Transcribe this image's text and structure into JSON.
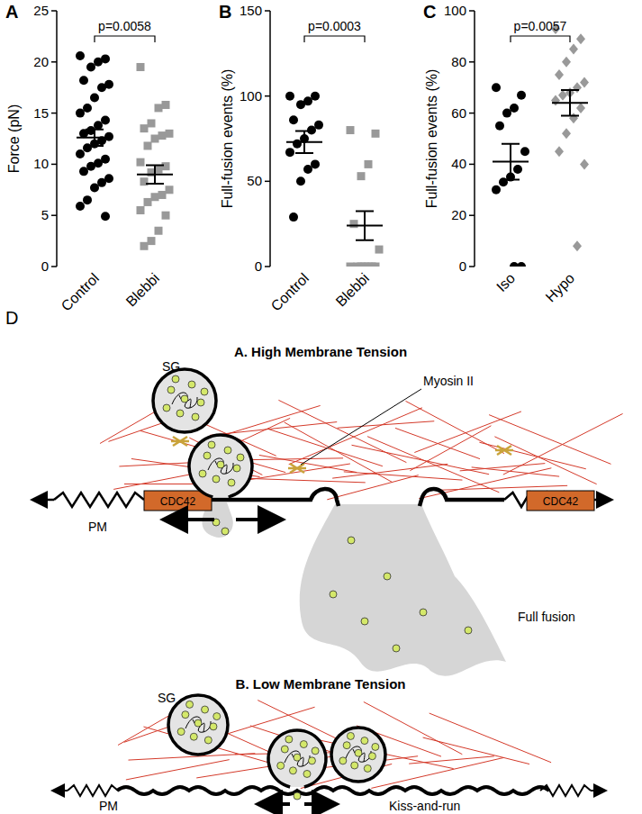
{
  "chart_data": [
    {
      "type": "scatter",
      "panel": "A",
      "y_label": "Force (pN)",
      "categories": [
        "Control",
        "Blebbi"
      ],
      "ylim": [
        0,
        25
      ],
      "yticks": [
        0,
        5,
        10,
        15,
        20,
        25
      ],
      "annotation": "p=0.0058",
      "groups": [
        {
          "color": "#000000",
          "marker": "circle",
          "mean": 12.6,
          "error": 0.8,
          "values": [
            20.6,
            20.3,
            20.0,
            19.5,
            18.2,
            17.8,
            17.5,
            16.5,
            15.5,
            15.0,
            14.3,
            13.8,
            13.3,
            13.0,
            12.7,
            12.3,
            12.0,
            11.6,
            11.0,
            10.5,
            10.1,
            9.8,
            9.3,
            8.6,
            8.2,
            7.7,
            6.5,
            5.9,
            4.9
          ]
        },
        {
          "color": "#999999",
          "marker": "square",
          "mean": 9.0,
          "error": 0.9,
          "values": [
            19.5,
            15.8,
            15.5,
            14.0,
            13.5,
            13.0,
            12.8,
            12.5,
            11.8,
            10.2,
            9.8,
            9.5,
            9.2,
            8.3,
            7.5,
            7.0,
            6.8,
            6.3,
            5.5,
            5.0,
            3.5,
            2.5,
            2.0
          ]
        }
      ]
    },
    {
      "type": "scatter",
      "panel": "B",
      "y_label": "Full-fusion events (%)",
      "categories": [
        "Control",
        "Blebbi"
      ],
      "ylim": [
        0,
        150
      ],
      "yticks": [
        0,
        50,
        100,
        150
      ],
      "annotation": "p=0.0003",
      "groups": [
        {
          "color": "#000000",
          "marker": "circle",
          "mean": 73,
          "error": 6.5,
          "values": [
            100,
            100,
            97,
            95,
            86,
            83,
            80,
            75,
            72,
            67,
            60,
            57,
            50,
            29
          ]
        },
        {
          "color": "#999999",
          "marker": "square",
          "mean": 24,
          "error": 8.5,
          "values": [
            80,
            78,
            60,
            53,
            25,
            10,
            0,
            0,
            0,
            0,
            0,
            0,
            0
          ]
        }
      ]
    },
    {
      "type": "scatter",
      "panel": "C",
      "y_label": "Full-fusion events (%)",
      "categories": [
        "Iso",
        "Hypo"
      ],
      "ylim": [
        0,
        100
      ],
      "yticks": [
        0,
        20,
        40,
        60,
        80,
        100
      ],
      "annotation": "p=0.0057",
      "groups": [
        {
          "color": "#000000",
          "marker": "circle",
          "mean": 41,
          "error": 7,
          "values": [
            70,
            67,
            62,
            60,
            55,
            45,
            38,
            35,
            33,
            30,
            0,
            0
          ]
        },
        {
          "color": "#999999",
          "marker": "diamond",
          "mean": 64,
          "error": 5,
          "values": [
            93,
            89,
            85,
            80,
            75,
            72,
            70,
            68,
            67,
            65,
            62,
            58,
            52,
            45,
            40,
            8
          ]
        }
      ]
    }
  ],
  "diagram": {
    "label": "D",
    "high": {
      "title": "A. High Membrane Tension",
      "granule": "SG",
      "motor": "Myosin II",
      "cdc42": [
        "CDC42",
        "CDC42"
      ],
      "membrane": "PM",
      "outcome": "Full fusion"
    },
    "low": {
      "title": "B. Low Membrane Tension",
      "granule": "SG",
      "membrane": "PM",
      "outcome": "Kiss-and-run"
    }
  }
}
